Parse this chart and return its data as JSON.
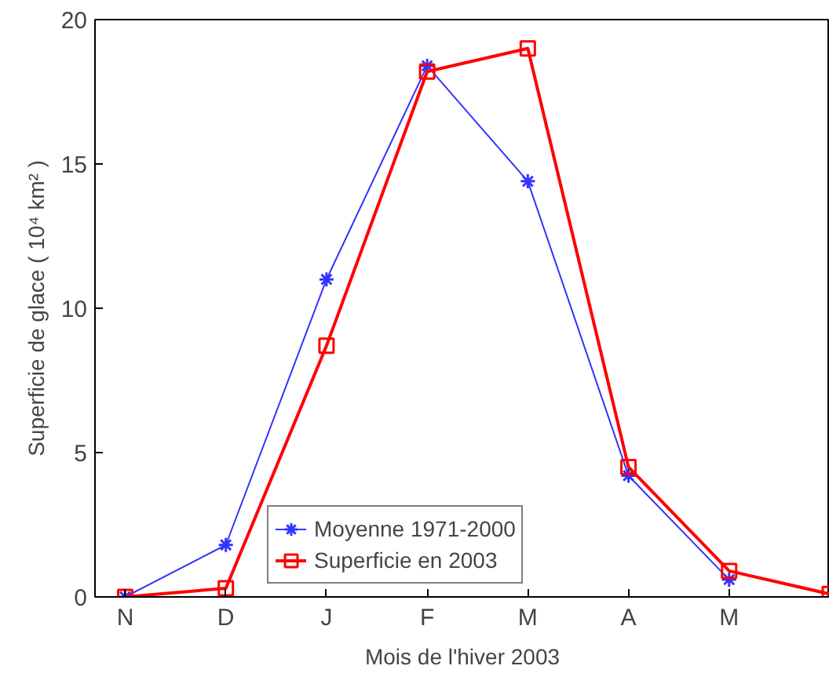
{
  "chart_data": {
    "type": "line",
    "xlabel": "Mois de l'hiver 2003",
    "ylabel": "Superficie de glace ( 10⁴ km² )",
    "categories": [
      "N",
      "D",
      "J",
      "F",
      "M",
      "A",
      "M",
      null
    ],
    "series": [
      {
        "name": "Moyenne 1971-2000",
        "color": "#3333ff",
        "marker": "cross",
        "values": [
          0,
          1.8,
          11.0,
          18.4,
          14.4,
          4.2,
          0.6,
          null
        ]
      },
      {
        "name": "Superficie en 2003",
        "color": "#ff0000",
        "marker": "square",
        "values": [
          0,
          0.3,
          8.7,
          18.2,
          19.0,
          4.5,
          0.9,
          0.1
        ]
      }
    ],
    "ylim": [
      0,
      20
    ],
    "yticks": [
      0,
      5,
      10,
      15,
      20
    ],
    "grid": false,
    "legend": "bottom"
  }
}
